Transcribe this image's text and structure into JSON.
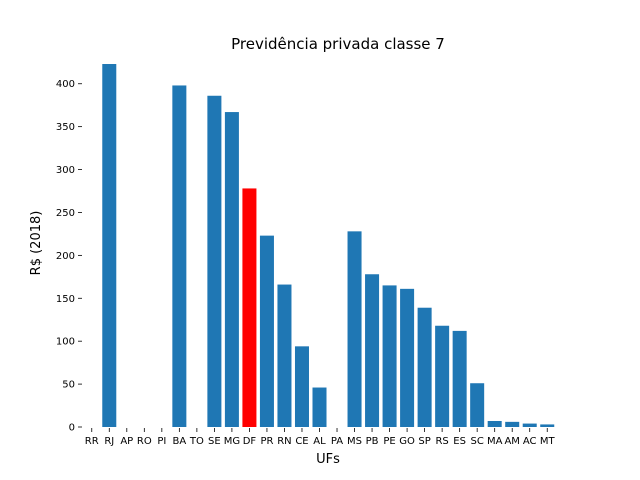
{
  "chart_data": {
    "type": "bar",
    "title": "Previdência privada classe 7",
    "xlabel": "UFs",
    "ylabel": "R$ (2018)",
    "ylim": [
      0,
      430
    ],
    "yticks": [
      0,
      50,
      100,
      150,
      200,
      250,
      300,
      350,
      400
    ],
    "grid": false,
    "categories": [
      "RR",
      "RJ",
      "AP",
      "RO",
      "PI",
      "BA",
      "TO",
      "SE",
      "MG",
      "DF",
      "PR",
      "RN",
      "CE",
      "AL",
      "PA",
      "MS",
      "PB",
      "PE",
      "GO",
      "SP",
      "RS",
      "ES",
      "SC",
      "MA",
      "AM",
      "AC",
      "MT"
    ],
    "values": [
      0,
      423,
      0,
      0,
      0,
      398,
      0,
      386,
      367,
      278,
      223,
      166,
      94,
      46,
      0,
      228,
      178,
      165,
      161,
      139,
      118,
      112,
      51,
      7,
      6,
      4,
      3
    ],
    "colors": {
      "default": "#1f77b4",
      "highlight": "#ff0000"
    },
    "highlight_category": "DF"
  }
}
